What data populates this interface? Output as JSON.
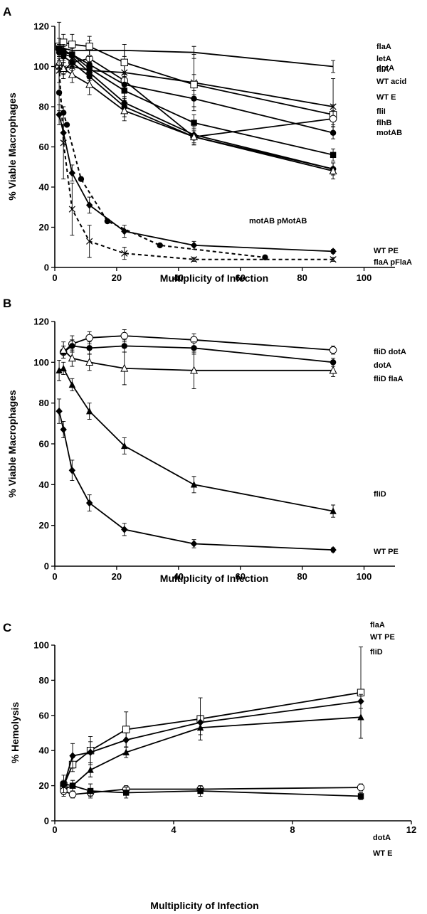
{
  "chart_data": [
    {
      "panel": "A",
      "type": "line",
      "xlabel": "Multiplicity of Infection",
      "ylabel": "% Viable Macrophages",
      "xlim": [
        0,
        110
      ],
      "ylim": [
        0,
        120
      ],
      "xticks": [
        0,
        20,
        40,
        60,
        80,
        100
      ],
      "yticks": [
        0,
        20,
        40,
        60,
        80,
        100,
        120
      ],
      "series": [
        {
          "name": "dotA",
          "marker": "none",
          "dashed": false,
          "x": [
            1.4,
            2.8,
            5.6,
            11.2,
            22.5,
            45,
            90
          ],
          "y": [
            108,
            109,
            108,
            108,
            108,
            107,
            100
          ],
          "err": [
            3,
            3,
            3,
            5,
            3,
            3,
            3
          ]
        },
        {
          "name": "flaA",
          "marker": "x",
          "dashed": false,
          "x": [
            1.4,
            2.8,
            5.6,
            11.2,
            22.5,
            45,
            90
          ],
          "y": [
            98,
            99,
            100,
            98,
            97,
            92,
            80
          ],
          "err": [
            6,
            5,
            5,
            4,
            4,
            14,
            14
          ]
        },
        {
          "name": "letA",
          "marker": "square-open",
          "dashed": false,
          "x": [
            1.4,
            2.8,
            5.6,
            11.2,
            22.5,
            45,
            90
          ],
          "y": [
            110,
            112,
            111,
            110,
            102,
            91,
            76
          ],
          "err": [
            4,
            4,
            5,
            5,
            6,
            5,
            5
          ]
        },
        {
          "name": "fliA",
          "marker": "circle-open",
          "dashed": false,
          "x": [
            1.4,
            2.8,
            5.6,
            11.2,
            22.5,
            45,
            90
          ],
          "y": [
            100,
            98,
            102,
            104,
            93,
            65,
            74
          ],
          "err": [
            3,
            4,
            4,
            4,
            4,
            4,
            4
          ]
        },
        {
          "name": "WT acid",
          "marker": "circle",
          "dashed": false,
          "x": [
            1.4,
            2.8,
            5.6,
            11.2,
            22.5,
            45,
            90
          ],
          "y": [
            109,
            108,
            106,
            101,
            91,
            84,
            67
          ],
          "err": [
            2,
            3,
            3,
            4,
            4,
            4,
            3
          ]
        },
        {
          "name": "WT E",
          "marker": "square",
          "dashed": false,
          "x": [
            1.4,
            2.8,
            5.6,
            11.2,
            22.5,
            45,
            90
          ],
          "y": [
            109,
            107,
            106,
            99,
            88,
            72,
            56
          ],
          "err": [
            2,
            3,
            3,
            3,
            4,
            4,
            3
          ]
        },
        {
          "name": "fliI",
          "marker": "diamond",
          "dashed": false,
          "x": [
            1.4,
            2.8,
            5.6,
            11.2,
            22.5,
            45,
            90
          ],
          "y": [
            108,
            106,
            105,
            97,
            82,
            66,
            49
          ],
          "err": [
            2,
            3,
            3,
            4,
            5,
            4,
            3
          ]
        },
        {
          "name": "flhB",
          "marker": "circle",
          "dashed": false,
          "x": [
            1.4,
            2.8,
            5.6,
            11.2,
            22.5,
            45,
            90
          ],
          "y": [
            107,
            105,
            102,
            95,
            80,
            65,
            49
          ],
          "err": [
            2,
            3,
            3,
            4,
            5,
            4,
            3
          ]
        },
        {
          "name": "motAB",
          "marker": "triangle-open",
          "dashed": false,
          "x": [
            1.4,
            2.8,
            5.6,
            11.2,
            22.5,
            45,
            90
          ],
          "y": [
            102,
            99,
            96,
            91,
            78,
            65,
            48
          ],
          "err": [
            3,
            3,
            4,
            5,
            5,
            4,
            4
          ]
        },
        {
          "name": "motAB pMotAB",
          "marker": "circle",
          "dashed": true,
          "x": [
            1.4,
            2.8,
            3.9,
            8.5,
            17,
            34,
            68
          ],
          "y": [
            87,
            77,
            71,
            44,
            23,
            11,
            5
          ],
          "err": [
            0,
            0,
            0,
            0,
            0,
            0,
            0
          ]
        },
        {
          "name": "WT PE",
          "marker": "diamond",
          "dashed": false,
          "x": [
            1.4,
            2.8,
            5.6,
            11.2,
            22.5,
            45,
            90
          ],
          "y": [
            76,
            67,
            47,
            31,
            18,
            11,
            8
          ],
          "err": [
            5,
            4,
            4,
            4,
            3,
            2,
            1
          ]
        },
        {
          "name": "flaA pFlaA",
          "marker": "x",
          "dashed": true,
          "x": [
            1.4,
            2.8,
            5.6,
            11.2,
            22.5,
            45,
            90
          ],
          "y": [
            100,
            62,
            29,
            13,
            7,
            4,
            4
          ],
          "err": [
            22,
            18,
            13,
            8,
            3,
            1,
            1
          ]
        }
      ]
    },
    {
      "panel": "B",
      "type": "line",
      "xlabel": "Multiplicity of Infection",
      "ylabel": "% Viable Macrophages",
      "xlim": [
        0,
        110
      ],
      "ylim": [
        0,
        120
      ],
      "xticks": [
        0,
        20,
        40,
        60,
        80,
        100
      ],
      "yticks": [
        0,
        20,
        40,
        60,
        80,
        100,
        120
      ],
      "series": [
        {
          "name": "fliD dotA",
          "marker": "circle-open",
          "dashed": false,
          "x": [
            2.8,
            5.6,
            11.2,
            22.5,
            45,
            90
          ],
          "y": [
            105,
            109,
            112,
            113,
            111,
            106
          ],
          "err": [
            3,
            4,
            3,
            3,
            3,
            2
          ]
        },
        {
          "name": "dotA",
          "marker": "circle",
          "dashed": false,
          "x": [
            2.8,
            5.6,
            11.2,
            22.5,
            45,
            90
          ],
          "y": [
            105,
            108,
            107,
            108,
            107,
            100
          ],
          "err": [
            3,
            3,
            3,
            3,
            3,
            2
          ]
        },
        {
          "name": "fliD flaA",
          "marker": "triangle-open",
          "dashed": false,
          "x": [
            2.8,
            5.6,
            11.2,
            22.5,
            45,
            90
          ],
          "y": [
            106,
            102,
            100,
            97,
            96,
            96
          ],
          "err": [
            4,
            4,
            4,
            8,
            9,
            3
          ]
        },
        {
          "name": "fliD",
          "marker": "triangle",
          "dashed": false,
          "x": [
            1.4,
            2.8,
            5.6,
            11.2,
            22.5,
            45,
            90
          ],
          "y": [
            96,
            97,
            89,
            76,
            59,
            40,
            27
          ],
          "err": [
            5,
            3,
            3,
            4,
            4,
            4,
            3
          ]
        },
        {
          "name": "WT PE",
          "marker": "diamond",
          "dashed": false,
          "x": [
            1.4,
            2.8,
            5.6,
            11.2,
            22.5,
            45,
            90
          ],
          "y": [
            76,
            67,
            47,
            31,
            18,
            11,
            8
          ],
          "err": [
            6,
            4,
            5,
            4,
            3,
            2,
            1
          ]
        }
      ]
    },
    {
      "panel": "C",
      "type": "line",
      "xlabel": "Multiplicity of Infection",
      "ylabel": "% Hemolysis",
      "xlim": [
        0,
        12
      ],
      "ylim": [
        0,
        100
      ],
      "xticks": [
        0,
        4,
        8,
        12
      ],
      "yticks": [
        0,
        20,
        40,
        60,
        80,
        100
      ],
      "series": [
        {
          "name": "flaA",
          "marker": "square-open",
          "dashed": false,
          "x": [
            0.3,
            0.6,
            1.2,
            2.4,
            4.9,
            10.3
          ],
          "y": [
            20,
            32,
            40,
            52,
            58,
            73
          ],
          "err": [
            3,
            4,
            8,
            10,
            12,
            26
          ]
        },
        {
          "name": "WT PE",
          "marker": "diamond",
          "dashed": false,
          "x": [
            0.3,
            0.6,
            1.2,
            2.4,
            4.9,
            10.3
          ],
          "y": [
            20,
            37,
            39,
            46,
            56,
            68
          ],
          "err": [
            3,
            7,
            6,
            4,
            4,
            4
          ]
        },
        {
          "name": "fliD",
          "marker": "triangle",
          "dashed": false,
          "x": [
            0.3,
            0.6,
            1.2,
            2.4,
            4.9,
            10.3
          ],
          "y": [
            18,
            20,
            29,
            39,
            53,
            59
          ],
          "err": [
            3,
            3,
            4,
            3,
            4,
            12
          ]
        },
        {
          "name": "dotA",
          "marker": "circle-open",
          "dashed": false,
          "x": [
            0.3,
            0.6,
            1.2,
            2.4,
            4.9,
            10.3
          ],
          "y": [
            17,
            15,
            16,
            18,
            18,
            19
          ],
          "err": [
            3,
            2,
            2,
            2,
            2,
            2
          ]
        },
        {
          "name": "WT E",
          "marker": "square",
          "dashed": false,
          "x": [
            0.3,
            0.6,
            1.2,
            2.4,
            4.9,
            10.3
          ],
          "y": [
            21,
            20,
            17,
            16,
            17,
            14
          ],
          "err": [
            5,
            3,
            4,
            3,
            3,
            2
          ]
        }
      ]
    }
  ]
}
